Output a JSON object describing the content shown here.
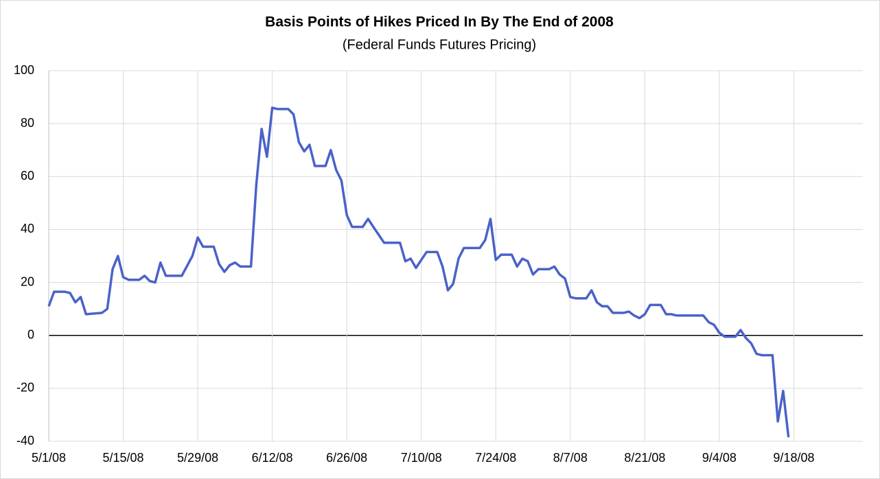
{
  "chart_data": {
    "type": "line",
    "title": "Basis Points of Hikes Priced In By The End of 2008",
    "subtitle": "(Federal Funds Futures Pricing)",
    "x": [
      "5/1/08",
      "5/2/08",
      "5/4/08",
      "5/5/08",
      "5/6/08",
      "5/7/08",
      "5/8/08",
      "5/11/08",
      "5/12/08",
      "5/13/08",
      "5/14/08",
      "5/15/08",
      "5/16/08",
      "5/18/08",
      "5/19/08",
      "5/20/08",
      "5/21/08",
      "5/22/08",
      "5/23/08",
      "5/26/08",
      "5/28/08",
      "5/29/08",
      "5/30/08",
      "6/1/08",
      "6/2/08",
      "6/3/08",
      "6/4/08",
      "6/5/08",
      "6/6/08",
      "6/8/08",
      "6/9/08",
      "6/10/08",
      "6/11/08",
      "6/12/08",
      "6/13/08",
      "6/15/08",
      "6/16/08",
      "6/17/08",
      "6/18/08",
      "6/19/08",
      "6/20/08",
      "6/22/08",
      "6/23/08",
      "6/24/08",
      "6/25/08",
      "6/26/08",
      "6/27/08",
      "6/29/08",
      "6/30/08",
      "7/1/08",
      "7/2/08",
      "7/3/08",
      "7/6/08",
      "7/7/08",
      "7/8/08",
      "7/9/08",
      "7/10/08",
      "7/11/08",
      "7/13/08",
      "7/14/08",
      "7/15/08",
      "7/16/08",
      "7/17/08",
      "7/18/08",
      "7/21/08",
      "7/22/08",
      "7/23/08",
      "7/24/08",
      "7/25/08",
      "7/27/08",
      "7/28/08",
      "7/29/08",
      "7/30/08",
      "7/31/08",
      "8/1/08",
      "8/3/08",
      "8/4/08",
      "8/5/08",
      "8/6/08",
      "8/7/08",
      "8/8/08",
      "8/10/08",
      "8/11/08",
      "8/12/08",
      "8/13/08",
      "8/14/08",
      "8/15/08",
      "8/17/08",
      "8/18/08",
      "8/19/08",
      "8/20/08",
      "8/21/08",
      "8/22/08",
      "8/24/08",
      "8/25/08",
      "8/26/08",
      "8/27/08",
      "9/1/08",
      "9/2/08",
      "9/3/08",
      "9/4/08",
      "9/5/08",
      "9/7/08",
      "9/8/08",
      "9/9/08",
      "9/10/08",
      "9/11/08",
      "9/12/08",
      "9/14/08",
      "9/15/08",
      "9/16/08",
      "9/17/08"
    ],
    "series": [
      {
        "name": "Basis points of hikes",
        "color": "#4a62c8",
        "values": [
          11,
          16.5,
          16.5,
          16,
          12.5,
          14.5,
          8,
          8.5,
          10,
          25,
          30,
          22,
          21,
          21,
          22.5,
          20.5,
          20,
          27.5,
          22.5,
          22.5,
          30,
          37,
          33.5,
          33.5,
          27,
          24,
          26.5,
          27.5,
          26,
          26,
          57,
          78,
          67.5,
          86,
          85.5,
          85.5,
          83.5,
          73,
          69.5,
          72,
          64,
          64,
          70,
          62.5,
          58.5,
          45.5,
          41,
          41,
          44,
          41,
          38,
          35,
          35,
          28,
          29,
          25.5,
          28.5,
          31.5,
          31.5,
          26,
          17,
          19.5,
          29,
          33,
          33,
          36,
          44,
          28.5,
          30.5,
          30.5,
          26,
          29,
          28,
          23,
          25,
          25,
          26,
          23,
          21.5,
          14.5,
          14,
          14,
          17,
          12.5,
          11,
          11,
          8.5,
          8.5,
          9,
          7.5,
          6.5,
          8,
          11.5,
          11.5,
          8,
          8,
          7.5,
          7.5,
          5,
          4,
          1,
          -0.5,
          -0.5,
          2,
          -1,
          -3,
          -7,
          -7.5,
          -7.5,
          -32.5,
          -21,
          -38.5
        ]
      }
    ],
    "xlim": [
      "5/1/08",
      "10/2/08"
    ],
    "xticks": [
      "5/1/08",
      "5/15/08",
      "5/29/08",
      "6/12/08",
      "6/26/08",
      "7/10/08",
      "7/24/08",
      "8/7/08",
      "8/21/08",
      "9/4/08",
      "9/18/08"
    ],
    "ylim": [
      -40,
      100
    ],
    "yticks": [
      -40,
      -20,
      0,
      20,
      40,
      60,
      80,
      100
    ],
    "grid": true
  }
}
